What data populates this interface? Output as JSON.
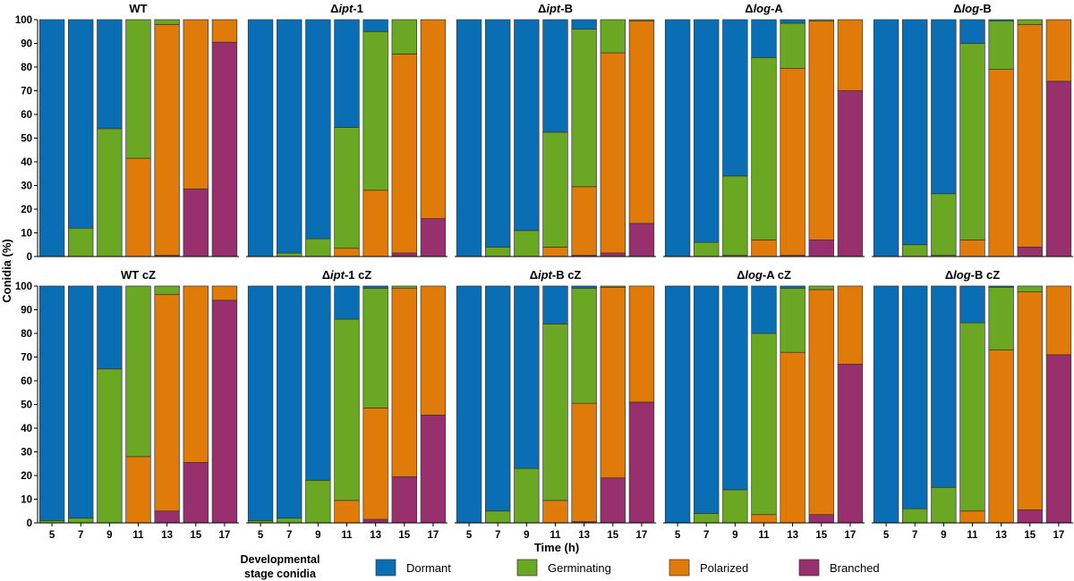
{
  "chart_data": {
    "type": "bar",
    "stacked": true,
    "xlabel": "Time (h)",
    "ylabel": "Conidia (%)",
    "ylim": [
      0,
      100
    ],
    "yticks": [
      0,
      10,
      20,
      30,
      40,
      50,
      60,
      70,
      80,
      90,
      100
    ],
    "categories": [
      "5",
      "7",
      "9",
      "11",
      "13",
      "15",
      "17"
    ],
    "legend": {
      "title_line1": "Developmental",
      "title_line2": "stage conidia",
      "position": "bottom",
      "items": [
        {
          "name": "Dormant",
          "color": "#0a6eb4"
        },
        {
          "name": "Germinating",
          "color": "#6aa823"
        },
        {
          "name": "Polarized",
          "color": "#e07b0a"
        },
        {
          "name": "Branched",
          "color": "#98306e"
        }
      ]
    },
    "panels": [
      {
        "title_prefix": "",
        "title_italic": "",
        "title_suffix": "WT",
        "branched": [
          0,
          0,
          0,
          0,
          0.5,
          28.5,
          90.5
        ],
        "polarized": [
          0,
          0,
          0,
          41.5,
          97.5,
          71.5,
          9.5
        ],
        "germinating": [
          0,
          12,
          54,
          58.5,
          2,
          0,
          0
        ],
        "dormant": [
          100,
          88,
          46,
          0,
          0,
          0,
          0
        ]
      },
      {
        "title_prefix": "Δ",
        "title_italic": "ipt",
        "title_suffix": "-1",
        "branched": [
          0,
          0,
          0,
          0,
          0,
          1.5,
          16
        ],
        "polarized": [
          0,
          0,
          0,
          3.5,
          28,
          84,
          84
        ],
        "germinating": [
          0,
          1.5,
          7.5,
          51,
          67,
          14.5,
          0
        ],
        "dormant": [
          100,
          98.5,
          92.5,
          45.5,
          5,
          0,
          0
        ]
      },
      {
        "title_prefix": "Δ",
        "title_italic": "ipt",
        "title_suffix": "-B",
        "branched": [
          0,
          0,
          0,
          0,
          0.5,
          1.5,
          14
        ],
        "polarized": [
          0,
          0,
          0,
          4,
          29,
          84.5,
          85.5
        ],
        "germinating": [
          0,
          4,
          11,
          48.5,
          66.5,
          14,
          0.5
        ],
        "dormant": [
          100,
          96,
          89,
          47.5,
          4,
          0,
          0
        ]
      },
      {
        "title_prefix": "Δ",
        "title_italic": "log",
        "title_suffix": "-A",
        "branched": [
          0,
          0,
          0,
          0,
          0.5,
          7,
          70
        ],
        "polarized": [
          0,
          0,
          0.5,
          7,
          79,
          92.5,
          30
        ],
        "germinating": [
          0,
          6,
          33.5,
          77,
          19,
          0.5,
          0
        ],
        "dormant": [
          100,
          94,
          66,
          16,
          1.5,
          0,
          0
        ]
      },
      {
        "title_prefix": "Δ",
        "title_italic": "log",
        "title_suffix": "-B",
        "branched": [
          0,
          0,
          0,
          0,
          0,
          4,
          74
        ],
        "polarized": [
          0,
          0,
          0.5,
          7,
          79,
          94,
          26
        ],
        "germinating": [
          0,
          5,
          26,
          83,
          20.5,
          2,
          0
        ],
        "dormant": [
          100,
          95,
          73.5,
          10,
          0.5,
          0,
          0
        ]
      },
      {
        "title_prefix": "",
        "title_italic": "",
        "title_suffix": "WT cZ",
        "branched": [
          0,
          0,
          0,
          0,
          5,
          25.5,
          94
        ],
        "polarized": [
          0,
          0,
          0,
          28,
          91.5,
          74.5,
          6
        ],
        "germinating": [
          1,
          2,
          65,
          72,
          3.5,
          0,
          0
        ],
        "dormant": [
          99,
          98,
          35,
          0,
          0,
          0,
          0
        ]
      },
      {
        "title_prefix": "Δ",
        "title_italic": "ipt",
        "title_suffix": "-1 cZ",
        "branched": [
          0,
          0,
          0,
          0,
          1.5,
          19.5,
          45.5
        ],
        "polarized": [
          0,
          0,
          0,
          9.5,
          47,
          79.5,
          54.5
        ],
        "germinating": [
          1,
          2,
          18,
          76.5,
          50.5,
          1,
          0
        ],
        "dormant": [
          99,
          98,
          82,
          14,
          1,
          0,
          0
        ]
      },
      {
        "title_prefix": "Δ",
        "title_italic": "ipt",
        "title_suffix": "-B cZ",
        "branched": [
          0,
          0,
          0,
          0,
          0.5,
          19,
          51
        ],
        "polarized": [
          0,
          0,
          0,
          9.5,
          50,
          80.5,
          49
        ],
        "germinating": [
          0,
          5,
          23,
          74.5,
          48.5,
          0.5,
          0
        ],
        "dormant": [
          100,
          95,
          77,
          16,
          1,
          0,
          0
        ]
      },
      {
        "title_prefix": "Δ",
        "title_italic": "log",
        "title_suffix": "-A cZ",
        "branched": [
          0,
          0,
          0,
          0,
          0,
          3.5,
          67
        ],
        "polarized": [
          0,
          0,
          0,
          3.5,
          72,
          95,
          33
        ],
        "germinating": [
          0,
          4,
          14,
          76.5,
          27,
          1.5,
          0
        ],
        "dormant": [
          100,
          96,
          86,
          20,
          1,
          0,
          0
        ]
      },
      {
        "title_prefix": "Δ",
        "title_italic": "log",
        "title_suffix": "-B cZ",
        "branched": [
          0,
          0,
          0,
          0,
          0,
          5.5,
          71
        ],
        "polarized": [
          0,
          0,
          0,
          5,
          73,
          92,
          29
        ],
        "germinating": [
          0,
          6,
          15,
          79.5,
          26.5,
          2.5,
          0
        ],
        "dormant": [
          100,
          94,
          85,
          15.5,
          0.5,
          0,
          0
        ]
      }
    ]
  }
}
